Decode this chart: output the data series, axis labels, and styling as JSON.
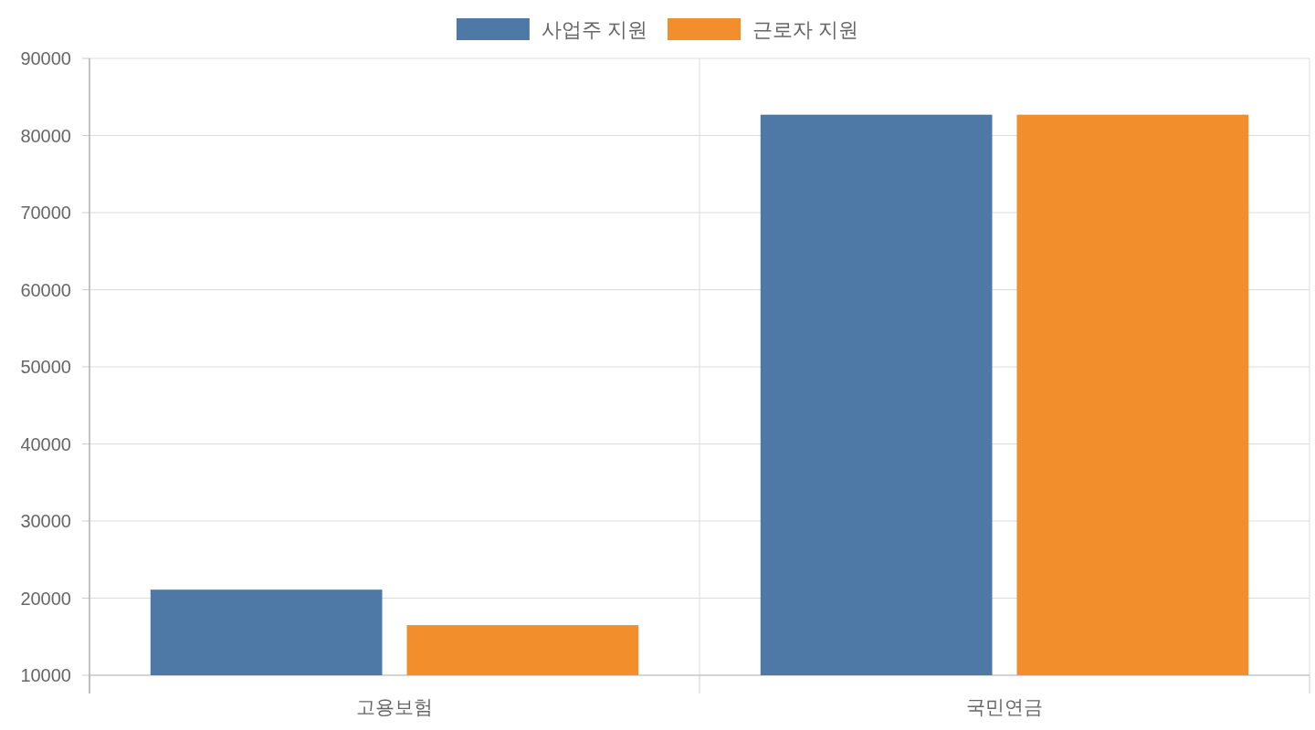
{
  "chart_data": {
    "type": "bar",
    "categories": [
      "고용보험",
      "국민연금"
    ],
    "series": [
      {
        "name": "사업주 지원",
        "color": "#4e79a7",
        "values": [
          21100,
          82700
        ]
      },
      {
        "name": "근로자 지원",
        "color": "#f28e2c",
        "values": [
          16500,
          82700
        ]
      }
    ],
    "ylim": [
      10000,
      90000
    ],
    "yticks": [
      10000,
      20000,
      30000,
      40000,
      50000,
      60000,
      70000,
      80000,
      90000
    ],
    "grid": true,
    "legend": "top"
  }
}
